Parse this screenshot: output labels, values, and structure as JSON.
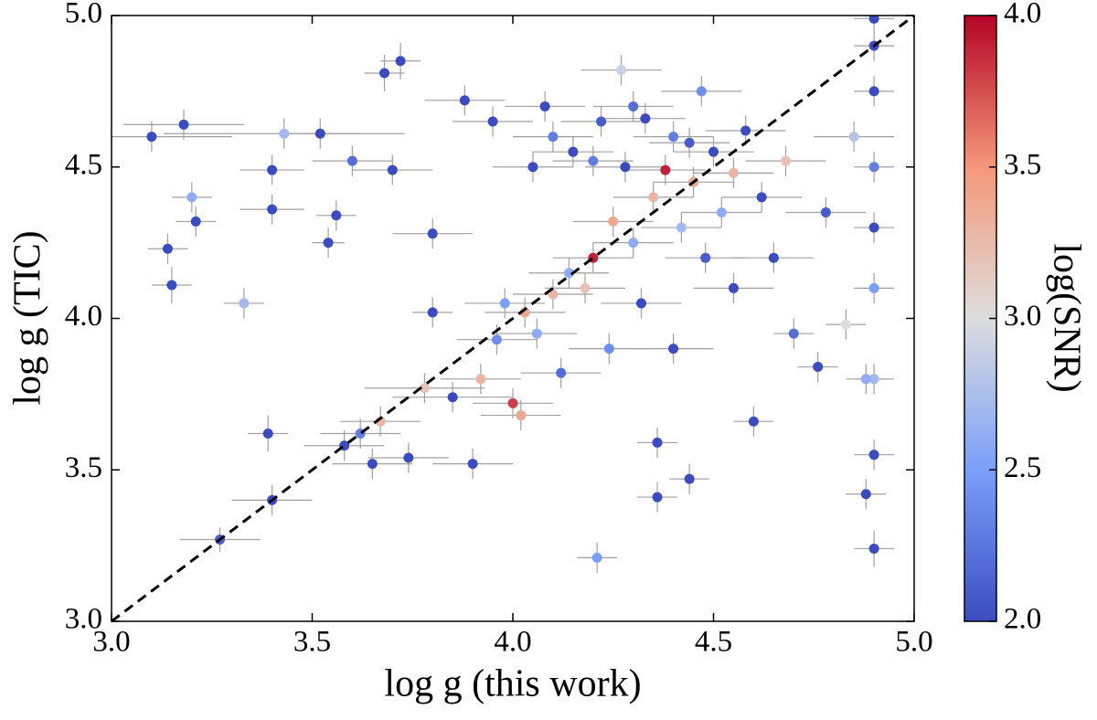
{
  "chart_data": {
    "type": "scatter",
    "x_label": "log g (this work)",
    "y_label": "log g (TIC)",
    "colorbar_label": "log(SNR)",
    "xlim": [
      3.0,
      5.0
    ],
    "ylim": [
      3.0,
      5.0
    ],
    "clim": [
      2.0,
      4.0
    ],
    "xticks": [
      {
        "value": 3.0,
        "label": "3.0"
      },
      {
        "value": 3.5,
        "label": "3.5"
      },
      {
        "value": 4.0,
        "label": "4.0"
      },
      {
        "value": 4.5,
        "label": "4.5"
      },
      {
        "value": 5.0,
        "label": "5.0"
      }
    ],
    "yticks": [
      {
        "value": 3.0,
        "label": "3.0"
      },
      {
        "value": 3.5,
        "label": "3.5"
      },
      {
        "value": 4.0,
        "label": "4.0"
      },
      {
        "value": 4.5,
        "label": "4.5"
      },
      {
        "value": 5.0,
        "label": "5.0"
      }
    ],
    "cticks": [
      {
        "value": 2.0,
        "label": "2.0"
      },
      {
        "value": 2.5,
        "label": "2.5"
      },
      {
        "value": 3.0,
        "label": "3.0"
      },
      {
        "value": 3.5,
        "label": "3.5"
      },
      {
        "value": 4.0,
        "label": "4.0"
      }
    ],
    "colormap": [
      "#3b4cc0",
      "#7b9ff9",
      "#dddddd",
      "#f4987a",
      "#b40426"
    ],
    "error_color": "#a0a0a0",
    "identity_line": true,
    "x": [
      3.1,
      3.18,
      3.14,
      3.15,
      3.2,
      3.21,
      3.27,
      3.33,
      3.39,
      3.4,
      3.4,
      3.4,
      3.43,
      3.52,
      3.54,
      3.56,
      3.58,
      3.6,
      3.62,
      3.65,
      3.67,
      3.68,
      3.72,
      3.74,
      3.7,
      3.78,
      3.8,
      3.8,
      3.85,
      3.88,
      3.9,
      3.92,
      3.95,
      3.96,
      3.98,
      4.0,
      4.02,
      4.03,
      4.05,
      4.06,
      4.08,
      4.1,
      4.1,
      4.12,
      4.14,
      4.15,
      4.18,
      4.2,
      4.21,
      4.22,
      4.24,
      4.25,
      4.27,
      4.28,
      4.3,
      4.3,
      4.32,
      4.35,
      4.36,
      4.36,
      4.38,
      4.4,
      4.4,
      4.42,
      4.44,
      4.45,
      4.47,
      4.48,
      4.5,
      4.52,
      4.55,
      4.55,
      4.58,
      4.6,
      4.62,
      4.65,
      4.68,
      4.7,
      4.76,
      4.78,
      4.83,
      4.85,
      4.88,
      4.9,
      4.9,
      4.9,
      4.9,
      4.9,
      4.9,
      4.9,
      4.9,
      4.9,
      4.88,
      4.44,
      4.33,
      4.2
    ],
    "y": [
      4.6,
      4.64,
      4.23,
      4.11,
      4.4,
      4.32,
      3.27,
      4.05,
      3.62,
      3.4,
      4.49,
      4.36,
      4.61,
      4.61,
      4.25,
      4.34,
      3.58,
      4.52,
      3.62,
      3.52,
      3.66,
      4.81,
      4.85,
      3.54,
      4.49,
      3.77,
      4.28,
      4.02,
      3.74,
      4.72,
      3.52,
      3.8,
      4.65,
      3.93,
      4.05,
      3.72,
      3.68,
      4.02,
      4.5,
      3.95,
      4.7,
      4.08,
      4.6,
      3.82,
      4.15,
      4.55,
      4.1,
      4.2,
      3.21,
      4.65,
      3.9,
      4.32,
      4.82,
      4.5,
      4.25,
      4.7,
      4.05,
      4.4,
      3.41,
      3.59,
      4.49,
      4.6,
      3.9,
      4.3,
      3.47,
      4.45,
      4.75,
      4.2,
      4.55,
      4.35,
      4.48,
      4.1,
      4.62,
      3.66,
      4.4,
      4.2,
      4.52,
      3.95,
      3.84,
      4.35,
      3.98,
      4.6,
      3.42,
      4.99,
      4.9,
      4.75,
      4.5,
      4.3,
      4.1,
      3.8,
      3.55,
      3.24,
      3.8,
      4.58,
      4.66,
      4.52
    ],
    "c": [
      2.0,
      2.0,
      2.0,
      2.0,
      2.6,
      2.0,
      2.1,
      2.7,
      2.0,
      2.0,
      2.0,
      2.0,
      2.7,
      2.0,
      2.0,
      2.0,
      2.0,
      2.2,
      2.3,
      2.0,
      3.3,
      2.0,
      2.0,
      2.0,
      2.0,
      3.2,
      2.0,
      2.0,
      2.0,
      2.0,
      2.0,
      3.3,
      2.0,
      2.4,
      2.5,
      3.8,
      3.4,
      3.4,
      2.0,
      2.6,
      2.0,
      3.3,
      2.3,
      2.2,
      2.6,
      2.0,
      3.2,
      3.9,
      2.5,
      2.1,
      2.4,
      3.4,
      2.9,
      2.0,
      2.6,
      2.2,
      2.0,
      3.3,
      2.0,
      2.0,
      3.9,
      2.3,
      2.0,
      2.7,
      2.0,
      3.4,
      2.4,
      2.1,
      2.0,
      2.6,
      3.3,
      2.0,
      2.0,
      2.0,
      2.0,
      2.0,
      3.2,
      2.2,
      2.0,
      2.1,
      3.0,
      2.8,
      2.0,
      2.0,
      2.0,
      2.0,
      2.3,
      2.0,
      2.5,
      2.7,
      2.0,
      2.0,
      2.6,
      2.1,
      2.0,
      2.3
    ],
    "xerr": [
      0.2,
      0.15,
      0.05,
      0.05,
      0.05,
      0.05,
      0.1,
      0.05,
      0.05,
      0.1,
      0.08,
      0.08,
      0.3,
      0.1,
      0.04,
      0.05,
      0.1,
      0.1,
      0.1,
      0.1,
      0.1,
      0.05,
      0.05,
      0.1,
      0.1,
      0.15,
      0.1,
      0.05,
      0.15,
      0.1,
      0.1,
      0.1,
      0.1,
      0.1,
      0.1,
      0.1,
      0.1,
      0.1,
      0.1,
      0.1,
      0.1,
      0.1,
      0.1,
      0.1,
      0.1,
      0.1,
      0.1,
      0.1,
      0.05,
      0.1,
      0.1,
      0.1,
      0.1,
      0.1,
      0.1,
      0.1,
      0.1,
      0.1,
      0.05,
      0.05,
      0.1,
      0.1,
      0.1,
      0.1,
      0.05,
      0.1,
      0.1,
      0.1,
      0.1,
      0.1,
      0.1,
      0.1,
      0.1,
      0.05,
      0.1,
      0.1,
      0.1,
      0.05,
      0.05,
      0.1,
      0.05,
      0.1,
      0.05,
      0.05,
      0.05,
      0.05,
      0.05,
      0.05,
      0.05,
      0.05,
      0.05,
      0.05,
      0.05,
      0.1,
      0.1,
      0.1
    ],
    "yerr": [
      0.05,
      0.05,
      0.05,
      0.06,
      0.05,
      0.05,
      0.04,
      0.05,
      0.06,
      0.05,
      0.05,
      0.05,
      0.05,
      0.05,
      0.05,
      0.05,
      0.05,
      0.05,
      0.05,
      0.05,
      0.05,
      0.06,
      0.06,
      0.05,
      0.05,
      0.05,
      0.05,
      0.05,
      0.05,
      0.05,
      0.05,
      0.05,
      0.05,
      0.05,
      0.05,
      0.05,
      0.05,
      0.05,
      0.05,
      0.05,
      0.05,
      0.05,
      0.05,
      0.05,
      0.05,
      0.05,
      0.05,
      0.05,
      0.05,
      0.05,
      0.05,
      0.05,
      0.05,
      0.05,
      0.05,
      0.05,
      0.05,
      0.05,
      0.05,
      0.05,
      0.05,
      0.05,
      0.05,
      0.05,
      0.05,
      0.05,
      0.05,
      0.05,
      0.05,
      0.05,
      0.05,
      0.05,
      0.05,
      0.05,
      0.05,
      0.05,
      0.05,
      0.05,
      0.05,
      0.05,
      0.05,
      0.05,
      0.05,
      0.05,
      0.05,
      0.05,
      0.05,
      0.05,
      0.05,
      0.05,
      0.05,
      0.06,
      0.05,
      0.05,
      0.05,
      0.05
    ]
  }
}
